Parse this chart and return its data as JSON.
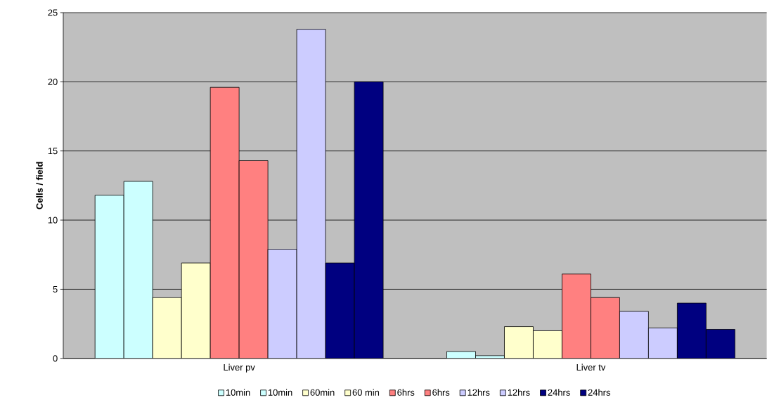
{
  "chart_data": {
    "type": "bar",
    "ylabel": "Cells / field",
    "categories": [
      "Liver pv",
      "Liver tv"
    ],
    "series": [
      {
        "name": "10min",
        "color": "#ccffff",
        "values": [
          11.8,
          0.5
        ]
      },
      {
        "name": "10min",
        "color": "#ccffff",
        "values": [
          12.8,
          0.2
        ]
      },
      {
        "name": "60min",
        "color": "#ffffcc",
        "values": [
          4.4,
          2.3
        ]
      },
      {
        "name": "60 min",
        "color": "#ffffcc",
        "values": [
          6.9,
          2.0
        ]
      },
      {
        "name": "6hrs",
        "color": "#ff8080",
        "values": [
          19.6,
          6.1
        ]
      },
      {
        "name": "6hrs",
        "color": "#ff8080",
        "values": [
          14.3,
          4.4
        ]
      },
      {
        "name": "12hrs",
        "color": "#ccccff",
        "values": [
          7.9,
          3.4
        ]
      },
      {
        "name": "12hrs",
        "color": "#ccccff",
        "values": [
          23.8,
          2.2
        ]
      },
      {
        "name": "24hrs",
        "color": "#000080",
        "values": [
          6.9,
          4.0
        ]
      },
      {
        "name": "24hrs",
        "color": "#000080",
        "values": [
          20.0,
          2.1
        ]
      }
    ],
    "ylim": [
      0,
      25
    ],
    "yticks": [
      0,
      5,
      10,
      15,
      20,
      25
    ],
    "grid": "y",
    "legend": "bottom"
  }
}
